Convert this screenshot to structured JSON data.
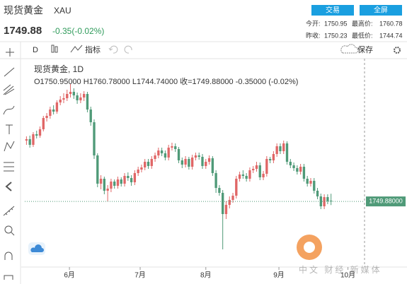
{
  "header": {
    "name": "现货黄金",
    "symbol": "XAU",
    "price": "1749.88",
    "change": "-0.35(-0.02%)",
    "buttons": [
      "交易",
      "全屏"
    ],
    "stats": [
      [
        "今开:",
        "1750.95",
        "最高价:",
        "1760.78"
      ],
      [
        "昨收:",
        "1750.23",
        "最低价:",
        "1744.74"
      ]
    ]
  },
  "toolbar": {
    "interval": "D",
    "indicators": "指标",
    "save": "保存"
  },
  "legend": {
    "title": "现货黄金, 1D",
    "ohlc": "O1750.95000  H1760.78000  L1744.74000  收=1749.88000  -0.35000 (-0.02%)"
  },
  "watermark": "中文 财经 新媒体",
  "chart_data": {
    "type": "candlestick",
    "up_color": "#e06666",
    "down_color": "#4f9a78",
    "xlim": [
      -0.5,
      99.9
    ],
    "ylim": [
      1663,
      1927
    ],
    "xticks": [
      {
        "value": 12.7,
        "label": "6月"
      },
      {
        "value": 33.6,
        "label": "7月"
      },
      {
        "value": 53,
        "label": "8月"
      },
      {
        "value": 74.6,
        "label": "9月"
      },
      {
        "value": 95,
        "label": "10月"
      }
    ],
    "open": [
      1836,
      1838,
      1830,
      1845,
      1843,
      1852,
      1868,
      1871,
      1880,
      1877,
      1890,
      1894,
      1896,
      1902,
      1905,
      1900,
      1893,
      1897,
      1902,
      1880,
      1862,
      1815,
      1775,
      1782,
      1765,
      1768,
      1778,
      1772,
      1781,
      1775,
      1786,
      1783,
      1777,
      1790,
      1795,
      1798,
      1806,
      1800,
      1810,
      1815,
      1822,
      1818,
      1812,
      1826,
      1828,
      1824,
      1808,
      1802,
      1810,
      1799,
      1812,
      1815,
      1813,
      1800,
      1806,
      1811,
      1790,
      1769,
      1762,
      1732,
      1745,
      1752,
      1758,
      1782,
      1788,
      1786,
      1782,
      1794,
      1796,
      1801,
      1784,
      1789,
      1810,
      1808,
      1817,
      1828,
      1821,
      1832,
      1806,
      1801,
      1797,
      1792,
      1799,
      1782,
      1775,
      1779,
      1765,
      1757,
      1743,
      1756,
      1750.95
    ],
    "high": [
      1842,
      1843,
      1848,
      1850,
      1856,
      1871,
      1875,
      1884,
      1886,
      1893,
      1899,
      1903,
      1908,
      1916,
      1910,
      1904,
      1903,
      1906,
      1905,
      1884,
      1866,
      1818,
      1787,
      1785,
      1773,
      1782,
      1781,
      1785,
      1784,
      1790,
      1791,
      1787,
      1794,
      1799,
      1802,
      1810,
      1810,
      1814,
      1819,
      1826,
      1826,
      1822,
      1830,
      1833,
      1832,
      1827,
      1812,
      1814,
      1813,
      1816,
      1819,
      1819,
      1817,
      1810,
      1815,
      1814,
      1794,
      1773,
      1766,
      1750,
      1757,
      1762,
      1786,
      1792,
      1794,
      1790,
      1798,
      1800,
      1806,
      1805,
      1793,
      1814,
      1813,
      1821,
      1832,
      1832,
      1836,
      1835,
      1810,
      1805,
      1801,
      1803,
      1803,
      1786,
      1783,
      1783,
      1769,
      1761,
      1760,
      1760,
      1760.78
    ],
    "low": [
      1830,
      1826,
      1827,
      1839,
      1840,
      1849,
      1863,
      1867,
      1873,
      1874,
      1886,
      1889,
      1892,
      1897,
      1895,
      1888,
      1889,
      1892,
      1876,
      1857,
      1810,
      1770,
      1767,
      1760,
      1750,
      1763,
      1768,
      1768,
      1771,
      1771,
      1779,
      1772,
      1773,
      1786,
      1791,
      1794,
      1796,
      1796,
      1806,
      1811,
      1814,
      1808,
      1808,
      1822,
      1820,
      1804,
      1797,
      1798,
      1795,
      1795,
      1808,
      1809,
      1796,
      1796,
      1802,
      1786,
      1762,
      1758,
      1682,
      1725,
      1740,
      1748,
      1754,
      1778,
      1782,
      1778,
      1778,
      1790,
      1792,
      1780,
      1780,
      1785,
      1804,
      1804,
      1813,
      1817,
      1817,
      1802,
      1797,
      1793,
      1788,
      1788,
      1778,
      1771,
      1771,
      1761,
      1753,
      1739,
      1739,
      1746,
      1744.74
    ],
    "close": [
      1838,
      1830,
      1845,
      1843,
      1852,
      1868,
      1871,
      1880,
      1877,
      1890,
      1894,
      1896,
      1902,
      1905,
      1900,
      1893,
      1897,
      1902,
      1880,
      1862,
      1815,
      1775,
      1782,
      1765,
      1768,
      1778,
      1772,
      1781,
      1775,
      1786,
      1783,
      1777,
      1790,
      1795,
      1798,
      1806,
      1800,
      1810,
      1815,
      1822,
      1818,
      1812,
      1826,
      1828,
      1824,
      1808,
      1802,
      1810,
      1799,
      1812,
      1815,
      1813,
      1800,
      1806,
      1811,
      1790,
      1769,
      1762,
      1732,
      1745,
      1752,
      1758,
      1782,
      1788,
      1786,
      1782,
      1794,
      1796,
      1801,
      1784,
      1789,
      1810,
      1808,
      1817,
      1828,
      1821,
      1832,
      1806,
      1801,
      1797,
      1792,
      1799,
      1782,
      1775,
      1779,
      1765,
      1757,
      1743,
      1756,
      1750.23,
      1749.88
    ],
    "last_label": "1749.88000"
  }
}
